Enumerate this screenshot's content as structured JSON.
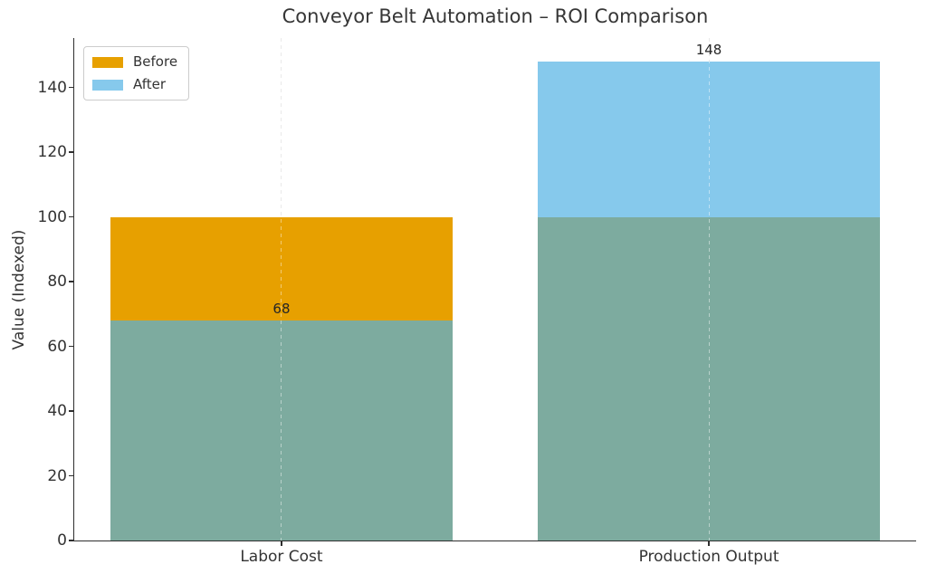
{
  "chart_data": {
    "type": "bar",
    "variant": "overlapping-translucent-bars",
    "title": "Conveyor Belt Automation – ROI Comparison",
    "xlabel": "",
    "ylabel": "Value (Indexed)",
    "categories": [
      "Labor Cost",
      "Production Output"
    ],
    "series": [
      {
        "name": "Before",
        "values": [
          100,
          100
        ],
        "color": "#e7a000"
      },
      {
        "name": "After",
        "values": [
          68,
          148
        ],
        "color": "#86c9ec"
      }
    ],
    "overlap_color": "#7dab9f",
    "value_labels": [
      "68",
      "148"
    ],
    "yticks": [
      0,
      20,
      40,
      60,
      80,
      100,
      120,
      140
    ],
    "ylim": [
      0,
      155.3
    ],
    "xlim": [
      -0.485,
      1.485
    ],
    "bar_width": 0.8,
    "grid": {
      "vertical_dashed_at_category_centers": true,
      "color": "#d7d7d7"
    },
    "legend": {
      "position": "upper-left",
      "entries": [
        "Before",
        "After"
      ]
    },
    "axis_text_color": "#333333",
    "spine_color": "#2e2e2e",
    "background_color": "#ffffff"
  }
}
